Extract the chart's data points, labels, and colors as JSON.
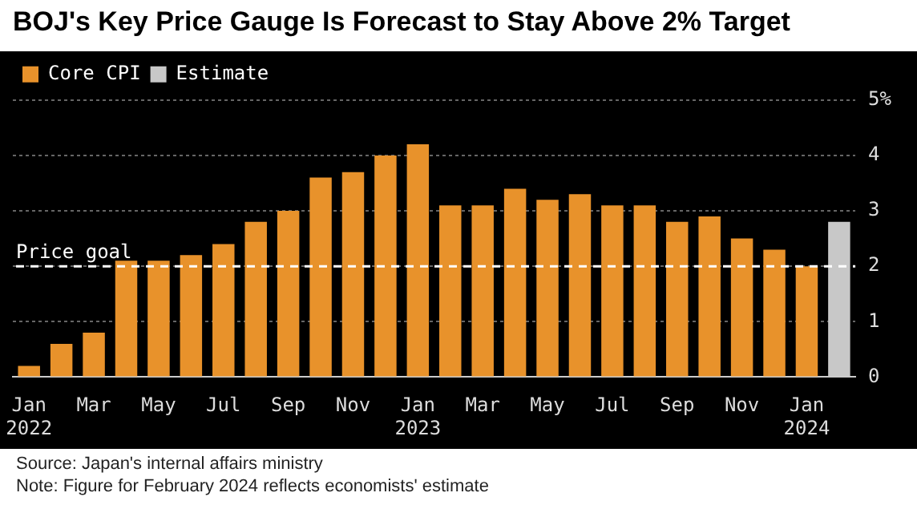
{
  "chart_data": {
    "type": "bar",
    "title": "BOJ's Key Price Gauge Is Forecast to Stay Above 2% Target",
    "categories": [
      "Jan\n2022",
      null,
      "Mar",
      null,
      "May",
      null,
      "Jul",
      null,
      "Sep",
      null,
      "Nov",
      null,
      "Jan\n2023",
      null,
      "Mar",
      null,
      "May",
      null,
      "Jul",
      null,
      "Sep",
      null,
      "Nov",
      null,
      "Jan\n2024",
      null
    ],
    "series": [
      {
        "name": "Core CPI",
        "color": "#e8922b",
        "values": [
          0.2,
          0.6,
          0.8,
          2.1,
          2.1,
          2.2,
          2.4,
          2.8,
          3.0,
          3.6,
          3.7,
          4.0,
          4.2,
          3.1,
          3.1,
          3.4,
          3.2,
          3.3,
          3.1,
          3.1,
          2.8,
          2.9,
          2.5,
          2.3,
          2.0,
          null
        ]
      },
      {
        "name": "Estimate",
        "color": "#c8c8c8",
        "values": [
          null,
          null,
          null,
          null,
          null,
          null,
          null,
          null,
          null,
          null,
          null,
          null,
          null,
          null,
          null,
          null,
          null,
          null,
          null,
          null,
          null,
          null,
          null,
          null,
          null,
          2.8
        ]
      }
    ],
    "ylim": [
      0,
      5
    ],
    "yticks": [
      0,
      1,
      2,
      3,
      4,
      {
        "value": 5,
        "label": "5%"
      }
    ],
    "grid": "y",
    "legend": "top left",
    "ref_lines": [
      {
        "axis": "y",
        "value": 2,
        "label": "Price goal",
        "color": "#ffffff",
        "line_style": "dashed"
      }
    ],
    "annotations": [
      "Source: Japan's internal affairs ministry",
      "Note: Figure for February 2024 reflects economists' estimate"
    ]
  }
}
